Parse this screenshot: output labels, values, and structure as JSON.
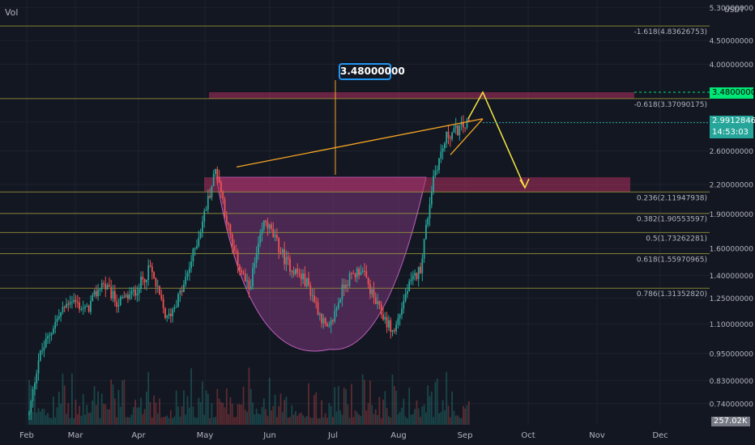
{
  "ui": {
    "volume_indicator_label": "Vol",
    "currency_unit": "USDT",
    "callout_label": "3.48000000",
    "target_price_tag": "3.48000000",
    "current_price_tag": "2.99128460",
    "countdown_tag": "14:53:03",
    "volume_tag": "257.02K"
  },
  "colors": {
    "background": "#131722",
    "bull": "#26a69a",
    "bear": "#ef5350",
    "fib_line": "#9b9a3a",
    "zone": "#b2305f",
    "cup_fill": "#8e3e8e",
    "trendline": "#f5a623",
    "arrow": "#f5e642",
    "callout_border": "#2196f3",
    "target_tag": "#00e676"
  },
  "chart_data": {
    "type": "candlestick",
    "title": "",
    "xlabel": "",
    "ylabel": "",
    "y_scale": "log",
    "ylim": [
      0.69,
      5.35
    ],
    "x_ticks": [
      "Feb",
      "Mar",
      "Apr",
      "May",
      "Jun",
      "Jul",
      "Aug",
      "Sep",
      "Oct",
      "Nov",
      "Dec"
    ],
    "y_ticks": [
      "5.30000000",
      "4.50000000",
      "4.00000000",
      "3.00000000",
      "2.60000000",
      "2.20000000",
      "1.90000000",
      "1.60000000",
      "1.40000000",
      "1.25000000",
      "1.10000000",
      "0.95000000",
      "0.83000000",
      "0.74000000"
    ],
    "price_path": [
      [
        "Feb",
        0.7
      ],
      [
        "Feb",
        0.92
      ],
      [
        "Feb",
        1.1
      ],
      [
        "Mar",
        1.25
      ],
      [
        "Mar",
        1.17
      ],
      [
        "Mar",
        1.35
      ],
      [
        "Mar",
        1.22
      ],
      [
        "Apr",
        1.28
      ],
      [
        "Apr",
        1.45
      ],
      [
        "Apr",
        1.12
      ],
      [
        "Apr",
        1.32
      ],
      [
        "May",
        1.75
      ],
      [
        "May",
        2.4
      ],
      [
        "May",
        1.6
      ],
      [
        "May",
        1.3
      ],
      [
        "Jun",
        1.85
      ],
      [
        "Jun",
        1.5
      ],
      [
        "Jun",
        1.35
      ],
      [
        "Jul",
        1.05
      ],
      [
        "Jul",
        1.35
      ],
      [
        "Jul",
        1.45
      ],
      [
        "Jul",
        1.2
      ],
      [
        "Aug",
        1.05
      ],
      [
        "Aug",
        1.3
      ],
      [
        "Aug",
        1.45
      ],
      [
        "Aug",
        2.3
      ],
      [
        "Aug",
        2.8
      ],
      [
        "Sep",
        2.99
      ]
    ],
    "fib_levels": [
      {
        "label": "-1.618(4.83626753)",
        "price": 4.83626753
      },
      {
        "label": "-0.618(3.37090175)",
        "price": 3.37090175
      },
      {
        "label": "0.236(2.11947938)",
        "price": 2.11947938
      },
      {
        "label": "0.382(1.90553597)",
        "price": 1.90553597
      },
      {
        "label": "0.5(1.73262281)",
        "price": 1.73262281
      },
      {
        "label": "0.618(1.55970965)",
        "price": 1.55970965
      },
      {
        "label": "0.786(1.31352820)",
        "price": 1.3135282
      }
    ],
    "zones": [
      {
        "from": "May",
        "to": "Nov",
        "low": 3.37,
        "high": 3.48
      },
      {
        "from": "May",
        "to": "Nov",
        "low": 2.12,
        "high": 2.28
      }
    ],
    "cup": {
      "left": [
        "May",
        2.28
      ],
      "bottom": [
        "Jul",
        0.97
      ],
      "right": [
        "Aug",
        2.28
      ]
    },
    "trendlines": [
      {
        "from": [
          "May",
          2.4
        ],
        "to": [
          "Sep",
          3.05
        ]
      },
      {
        "from": [
          "Aug",
          2.55
        ],
        "to": [
          "Sep",
          3.05
        ]
      }
    ],
    "projection": [
      [
        "Sep",
        3.05
      ],
      [
        "Sep",
        3.48
      ],
      [
        "Oct",
        2.2
      ]
    ],
    "callout_price": 3.48,
    "current_price": 2.9912846,
    "target_price": 3.48
  }
}
